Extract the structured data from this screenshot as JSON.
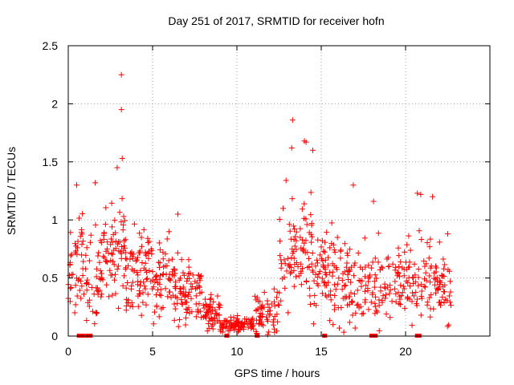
{
  "chart_data": {
    "type": "scatter",
    "title": "Day 251 of 2017, SRMTID for receiver hofn",
    "xlabel": "GPS time / hours",
    "ylabel": "SRMTID / TECUs",
    "xlim": [
      0,
      25
    ],
    "ylim": [
      0,
      2.5
    ],
    "xticks": [
      0,
      5,
      10,
      15,
      20
    ],
    "yticks": [
      0,
      0.5,
      1,
      1.5,
      2,
      2.5
    ],
    "ytick_labels": [
      "0",
      "0.5",
      "1",
      "1.5",
      "2",
      "2.5"
    ],
    "grid": true,
    "marker": "+",
    "color": "#ff0000",
    "series_profile": [
      {
        "start": 0.0,
        "end": 1.0,
        "mean": 0.6,
        "spread": 0.3,
        "count": 45
      },
      {
        "start": 1.0,
        "end": 2.0,
        "mean": 0.45,
        "spread": 0.35,
        "count": 45
      },
      {
        "start": 2.0,
        "end": 3.5,
        "mean": 0.75,
        "spread": 0.35,
        "count": 75
      },
      {
        "start": 3.5,
        "end": 5.0,
        "mean": 0.6,
        "spread": 0.3,
        "count": 75
      },
      {
        "start": 5.0,
        "end": 6.5,
        "mean": 0.45,
        "spread": 0.25,
        "count": 70
      },
      {
        "start": 6.5,
        "end": 8.0,
        "mean": 0.35,
        "spread": 0.2,
        "count": 70
      },
      {
        "start": 8.0,
        "end": 9.0,
        "mean": 0.2,
        "spread": 0.1,
        "count": 55
      },
      {
        "start": 9.0,
        "end": 11.0,
        "mean": 0.1,
        "spread": 0.05,
        "count": 90
      },
      {
        "start": 11.0,
        "end": 12.5,
        "mean": 0.22,
        "spread": 0.15,
        "count": 60
      },
      {
        "start": 12.5,
        "end": 14.5,
        "mean": 0.75,
        "spread": 0.4,
        "count": 90
      },
      {
        "start": 14.5,
        "end": 16.0,
        "mean": 0.55,
        "spread": 0.3,
        "count": 70
      },
      {
        "start": 16.0,
        "end": 18.0,
        "mean": 0.4,
        "spread": 0.25,
        "count": 80
      },
      {
        "start": 18.0,
        "end": 20.0,
        "mean": 0.45,
        "spread": 0.25,
        "count": 75
      },
      {
        "start": 20.0,
        "end": 21.5,
        "mean": 0.5,
        "spread": 0.3,
        "count": 60
      },
      {
        "start": 21.5,
        "end": 22.7,
        "mean": 0.4,
        "spread": 0.25,
        "count": 50
      }
    ],
    "notable_points": [
      {
        "x": 3.15,
        "y": 2.25
      },
      {
        "x": 3.15,
        "y": 1.95
      },
      {
        "x": 3.2,
        "y": 1.53
      },
      {
        "x": 2.9,
        "y": 1.45
      },
      {
        "x": 13.3,
        "y": 1.86
      },
      {
        "x": 13.25,
        "y": 1.62
      },
      {
        "x": 14.0,
        "y": 1.68
      },
      {
        "x": 14.1,
        "y": 1.67
      },
      {
        "x": 14.5,
        "y": 1.6
      },
      {
        "x": 16.9,
        "y": 1.3
      },
      {
        "x": 18.1,
        "y": 1.16
      },
      {
        "x": 20.7,
        "y": 1.23
      },
      {
        "x": 20.9,
        "y": 1.22
      },
      {
        "x": 21.6,
        "y": 1.2
      },
      {
        "x": 22.5,
        "y": 0.88
      },
      {
        "x": 0.5,
        "y": 1.3
      },
      {
        "x": 1.6,
        "y": 1.32
      },
      {
        "x": 6.5,
        "y": 1.05
      }
    ],
    "zero_markers": [
      0.65,
      0.75,
      0.85,
      1.15,
      1.3,
      9.4,
      11.2,
      15.2,
      18.0,
      18.2,
      20.7,
      20.8
    ]
  }
}
